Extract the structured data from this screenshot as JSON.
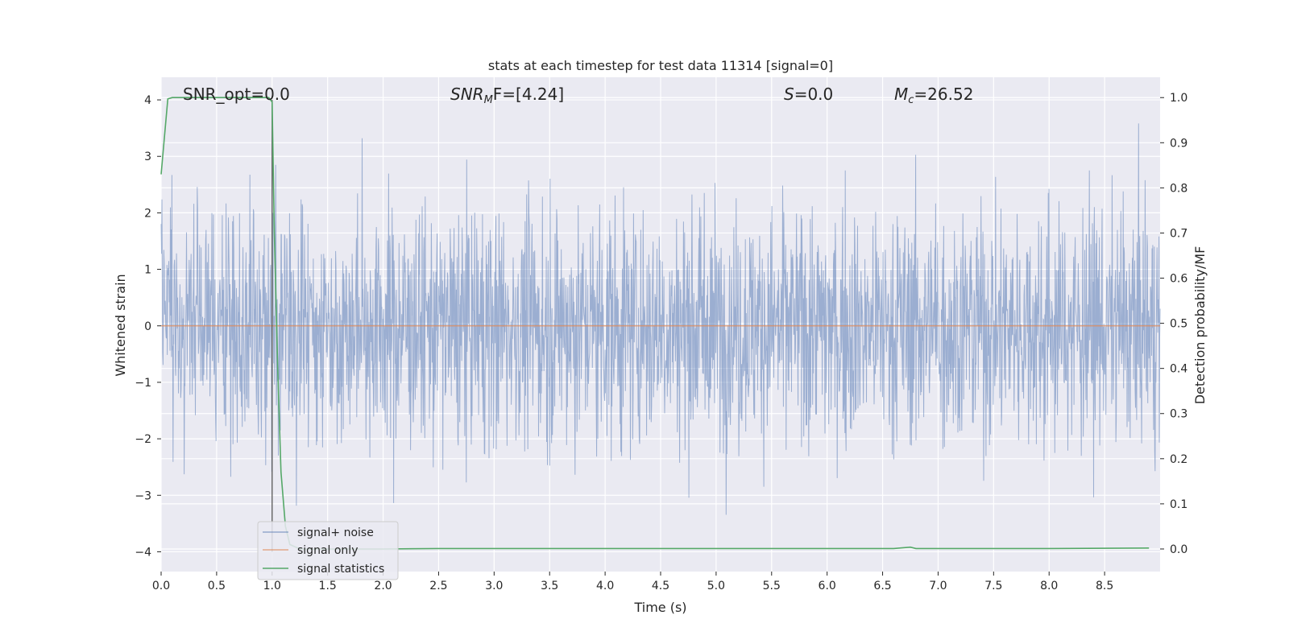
{
  "chart_data": {
    "type": "line",
    "title": "stats at each timestep for test data 11314 [signal=0]",
    "xlabel": "Time (s)",
    "ylabel": "Whitened strain",
    "ylabel_right": "Detection probability/MF",
    "xlim": [
      0.0,
      9.0
    ],
    "ylim": [
      -4.35,
      4.4
    ],
    "ylim_right": [
      -0.05,
      1.045
    ],
    "xticks": [
      "0.0",
      "0.5",
      "1.0",
      "1.5",
      "2.0",
      "2.5",
      "3.0",
      "3.5",
      "4.0",
      "4.5",
      "5.0",
      "5.5",
      "6.0",
      "6.5",
      "7.0",
      "7.5",
      "8.0",
      "8.5"
    ],
    "yticks": [
      "−4",
      "−3",
      "−2",
      "−1",
      "0",
      "1",
      "2",
      "3",
      "4"
    ],
    "yticks_right": [
      "0.0",
      "0.1",
      "0.2",
      "0.3",
      "0.4",
      "0.5",
      "0.6",
      "0.7",
      "0.8",
      "0.9",
      "1.0"
    ],
    "grid": true,
    "legend_position": "lower-left",
    "annotations": {
      "snr_opt": "SNR_opt=0.0",
      "snr_mf_main": "SNR",
      "snr_mf_sub": "M",
      "snr_mf_rest": "F=[4.24]",
      "s_main": "S",
      "s_rest": "=0.0",
      "mc_main": "M",
      "mc_sub": "c",
      "mc_rest": "=26.52"
    },
    "series": [
      {
        "name": "signal+ noise",
        "color": "#4c72b0",
        "description_values": "whitened strain noise, roughly symmetric about 0 with peaks up to ~3.8 and troughs to ~-4.0",
        "amplitude_envelope": [
          2.4,
          -2.6
        ]
      },
      {
        "name": "signal only",
        "color": "#dd8452",
        "x": [
          0.0,
          9.0
        ],
        "y": [
          0.0,
          0.0
        ]
      },
      {
        "name": "signal statistics",
        "color": "#55a868",
        "axis": "right",
        "x": [
          0.0,
          0.06,
          0.1,
          0.2,
          0.5,
          0.8,
          0.97,
          1.0,
          1.02,
          1.05,
          1.08,
          1.12,
          1.16,
          1.25,
          2.0,
          2.5,
          3.0,
          4.0,
          5.0,
          6.0,
          6.6,
          6.75,
          6.8,
          7.0,
          8.0,
          8.9
        ],
        "y": [
          0.83,
          0.997,
          1.0,
          1.0,
          1.0,
          1.0,
          1.0,
          0.99,
          0.7,
          0.4,
          0.17,
          0.05,
          0.01,
          0.0,
          0.0,
          0.001,
          0.001,
          0.001,
          0.001,
          0.001,
          0.001,
          0.004,
          0.001,
          0.001,
          0.001,
          0.002
        ]
      }
    ],
    "vertical_marker": {
      "x": 1.0,
      "y_top": 4.0,
      "y_bottom": -4.0,
      "color": "#555555"
    }
  }
}
